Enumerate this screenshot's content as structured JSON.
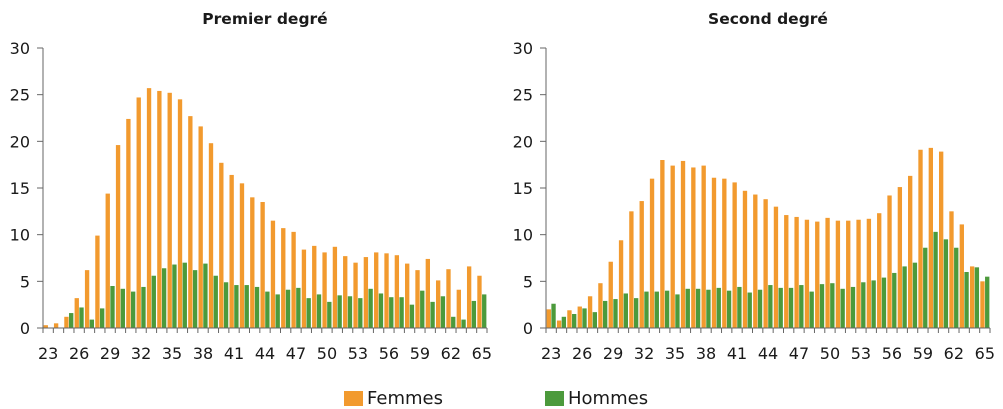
{
  "colors": {
    "femmes": "#F29A2E",
    "hommes": "#4C9A3C",
    "axis": "#666666"
  },
  "legend": {
    "femmes_label": "Femmes",
    "hommes_label": "Hommes"
  },
  "chart_data": [
    {
      "type": "bar",
      "title": "Premier degré",
      "xlabel": "",
      "ylabel": "",
      "ylim": [
        0,
        30
      ],
      "yticks": [
        0,
        5,
        10,
        15,
        20,
        25,
        30
      ],
      "x": [
        23,
        24,
        25,
        26,
        27,
        28,
        29,
        30,
        31,
        32,
        33,
        34,
        35,
        36,
        37,
        38,
        39,
        40,
        41,
        42,
        43,
        44,
        45,
        46,
        47,
        48,
        49,
        50,
        51,
        52,
        53,
        54,
        55,
        56,
        57,
        58,
        59,
        60,
        61,
        62,
        63,
        64,
        65
      ],
      "xtick_labels": [
        "23",
        "26",
        "29",
        "32",
        "35",
        "38",
        "41",
        "44",
        "47",
        "50",
        "53",
        "56",
        "59",
        "62",
        "65"
      ],
      "grid": false,
      "legend_position": "bottom",
      "series": [
        {
          "name": "Femmes",
          "color": "#F29A2E",
          "values": [
            0.3,
            0.5,
            1.2,
            3.2,
            6.2,
            9.9,
            14.4,
            19.6,
            22.4,
            24.7,
            25.7,
            25.4,
            25.2,
            24.5,
            22.7,
            21.6,
            19.8,
            17.7,
            16.4,
            15.5,
            14.0,
            13.5,
            11.5,
            10.7,
            10.3,
            8.4,
            8.8,
            8.1,
            8.7,
            7.7,
            7.0,
            7.6,
            8.1,
            8.0,
            7.8,
            6.9,
            6.2,
            7.4,
            5.1,
            6.3,
            4.1,
            6.6,
            5.6
          ]
        },
        {
          "name": "Hommes",
          "color": "#4C9A3C",
          "values": [
            0.0,
            0.0,
            1.6,
            2.2,
            0.9,
            2.1,
            4.5,
            4.2,
            3.9,
            4.4,
            5.6,
            6.4,
            6.8,
            7.0,
            6.2,
            6.9,
            5.6,
            4.9,
            4.6,
            4.6,
            4.4,
            3.9,
            3.6,
            4.1,
            4.3,
            3.2,
            3.6,
            2.8,
            3.5,
            3.4,
            3.2,
            4.2,
            3.7,
            3.3,
            3.3,
            2.5,
            4.0,
            2.8,
            3.4,
            1.2,
            0.9,
            2.9,
            3.6
          ]
        }
      ]
    },
    {
      "type": "bar",
      "title": "Second degré",
      "xlabel": "",
      "ylabel": "",
      "ylim": [
        0,
        30
      ],
      "yticks": [
        0,
        5,
        10,
        15,
        20,
        25,
        30
      ],
      "x": [
        23,
        24,
        25,
        26,
        27,
        28,
        29,
        30,
        31,
        32,
        33,
        34,
        35,
        36,
        37,
        38,
        39,
        40,
        41,
        42,
        43,
        44,
        45,
        46,
        47,
        48,
        49,
        50,
        51,
        52,
        53,
        54,
        55,
        56,
        57,
        58,
        59,
        60,
        61,
        62,
        63,
        64,
        65
      ],
      "xtick_labels": [
        "23",
        "26",
        "29",
        "32",
        "35",
        "38",
        "41",
        "44",
        "47",
        "50",
        "53",
        "56",
        "59",
        "62",
        "65"
      ],
      "grid": false,
      "legend_position": "bottom",
      "series": [
        {
          "name": "Femmes",
          "color": "#F29A2E",
          "values": [
            2.0,
            0.8,
            1.9,
            2.3,
            3.4,
            4.8,
            7.1,
            9.4,
            12.5,
            13.6,
            16.0,
            18.0,
            17.4,
            17.9,
            17.2,
            17.4,
            16.1,
            16.0,
            15.6,
            14.7,
            14.3,
            13.8,
            13.0,
            12.1,
            11.9,
            11.6,
            11.4,
            11.8,
            11.5,
            11.5,
            11.6,
            11.7,
            12.3,
            14.2,
            15.1,
            16.3,
            19.1,
            19.3,
            18.9,
            12.5,
            11.1,
            6.6,
            5.0
          ]
        },
        {
          "name": "Hommes",
          "color": "#4C9A3C",
          "values": [
            2.6,
            1.2,
            1.5,
            2.1,
            1.7,
            2.9,
            3.1,
            3.7,
            3.2,
            3.9,
            3.9,
            4.0,
            3.6,
            4.2,
            4.2,
            4.1,
            4.3,
            4.0,
            4.4,
            3.8,
            4.1,
            4.6,
            4.3,
            4.3,
            4.6,
            3.9,
            4.7,
            4.8,
            4.2,
            4.4,
            4.9,
            5.1,
            5.4,
            5.9,
            6.6,
            7.0,
            8.6,
            10.3,
            9.5,
            8.6,
            6.0,
            6.5,
            5.5
          ]
        }
      ]
    }
  ]
}
